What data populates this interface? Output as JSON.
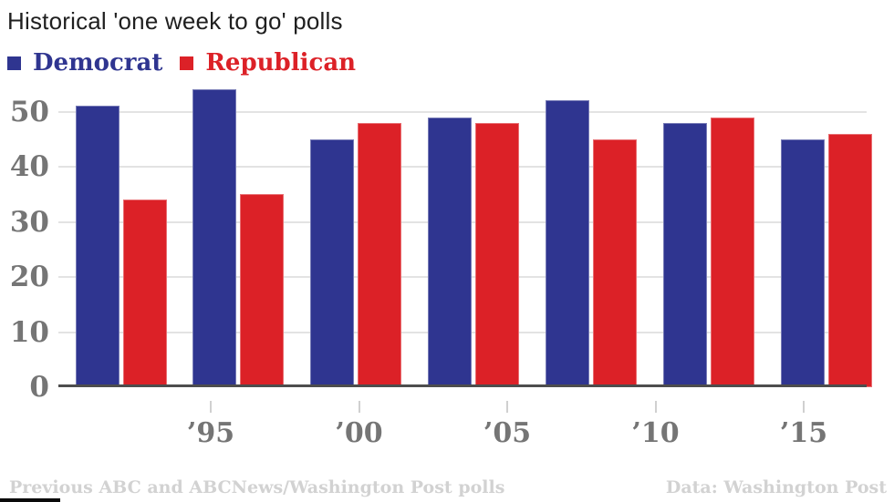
{
  "title": "Historical 'one week to go' polls",
  "footer": {
    "left": "Previous ABC and ABCNews/Washington Post polls",
    "right": "Data: Washington Post"
  },
  "colors": {
    "democrat": "#2f3590",
    "republican": "#dc2127",
    "axis_labels": "#757575",
    "gridline": "#e3e3e3",
    "axis_line": "#4d4d4d",
    "footer_text": "#d2d2d2",
    "title_text": "#1f1f1f"
  },
  "chart_data": {
    "type": "bar",
    "title": "Historical 'one week to go' polls",
    "x": [
      1992,
      1996,
      2000,
      2004,
      2008,
      2012,
      2016
    ],
    "series": [
      {
        "name": "Democrat",
        "color": "#2f3590",
        "values": [
          51,
          54,
          45,
          49,
          52,
          48,
          45
        ]
      },
      {
        "name": "Republican",
        "color": "#dc2127",
        "values": [
          34,
          35,
          48,
          48,
          45,
          49,
          46
        ]
      }
    ],
    "x_tick_labels": [
      "’95",
      "’00",
      "’05",
      "’10",
      "’15"
    ],
    "x_tick_years": [
      1995,
      2000,
      2005,
      2010,
      2015
    ],
    "y_ticks": [
      0,
      10,
      20,
      30,
      40,
      50
    ],
    "ylim": [
      0,
      55
    ],
    "xlabel": "",
    "ylabel": "",
    "grid": "horizontal",
    "legend_position": "top-left"
  }
}
